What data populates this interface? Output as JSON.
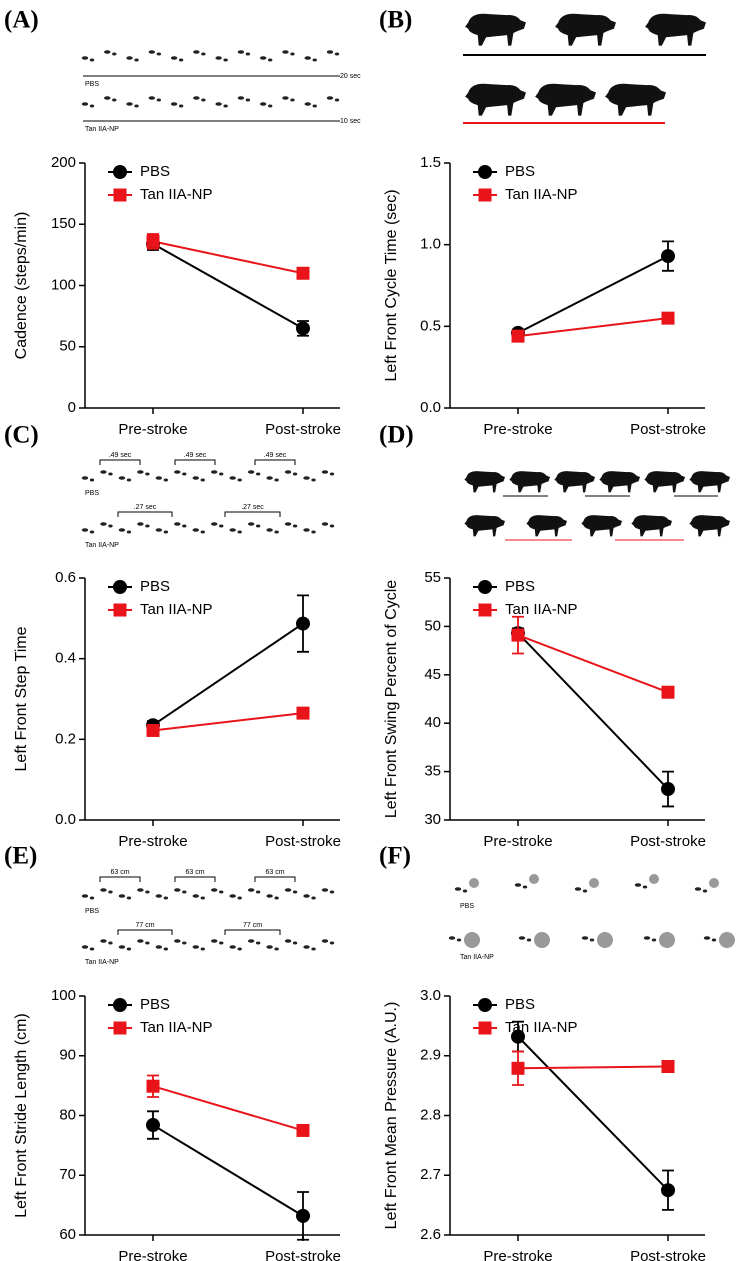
{
  "chart_data": [
    {
      "type": "line",
      "panel_label": "(A)",
      "y_label": "Cadence  (steps/min)",
      "annotations": [
        "PBS",
        "20 sec",
        "Tan IIA-NP",
        "10 sec"
      ],
      "categories": [
        "Pre-stroke",
        "Post-stroke"
      ],
      "ylim": [
        0,
        200
      ],
      "yticks": [
        0,
        50,
        100,
        150,
        200
      ],
      "series": [
        {
          "name": "PBS",
          "color": "#000000",
          "marker": "circle",
          "values": [
            134,
            65
          ],
          "errors": [
            5,
            6
          ]
        },
        {
          "name": "Tan IIA-NP",
          "color": "#e8141a",
          "marker": "square",
          "values": [
            136,
            110
          ],
          "errors": [
            6,
            2
          ]
        }
      ]
    },
    {
      "type": "line",
      "panel_label": "(B)",
      "y_label": "Left  Front Cycle Time (sec)",
      "annotations": [],
      "categories": [
        "Pre-stroke",
        "Post-stroke"
      ],
      "ylim": [
        0,
        1.5
      ],
      "yticks": [
        {
          "value": 0,
          "label": "0.0"
        },
        0.5,
        {
          "value": 1,
          "label": "1.0"
        },
        1.5
      ],
      "series": [
        {
          "name": "PBS",
          "color": "#000000",
          "marker": "circle",
          "values": [
            0.46,
            0.93
          ],
          "errors": [
            0.02,
            0.09
          ]
        },
        {
          "name": "Tan IIA-NP",
          "color": "#e8141a",
          "marker": "square",
          "values": [
            0.44,
            0.55
          ],
          "errors": [
            0.02,
            0.02
          ]
        }
      ]
    },
    {
      "type": "line",
      "panel_label": "(C)",
      "y_label": "Left  Front  Step  Time",
      "annotations": [
        ".49 sec",
        ".49 sec",
        ".49 sec",
        "PBS",
        ".27 sec",
        ".27 sec",
        "Tan IIA-NP"
      ],
      "categories": [
        "Pre-stroke",
        "Post-stroke"
      ],
      "ylim": [
        0,
        0.6
      ],
      "yticks": [
        {
          "value": 0,
          "label": "0.0"
        },
        0.2,
        0.4,
        0.6
      ],
      "series": [
        {
          "name": "PBS",
          "color": "#000000",
          "marker": "circle",
          "values": [
            0.235,
            0.487
          ],
          "errors": [
            0.01,
            0.07
          ]
        },
        {
          "name": "Tan IIA-NP",
          "color": "#e8141a",
          "marker": "square",
          "values": [
            0.222,
            0.265
          ],
          "errors": [
            0.01,
            0.01
          ]
        }
      ]
    },
    {
      "type": "line",
      "panel_label": "(D)",
      "y_label": "Left  Front  Swing Percent of  Cycle",
      "annotations": [],
      "categories": [
        "Pre-stroke",
        "Post-stroke"
      ],
      "ylim": [
        30,
        55
      ],
      "yticks": [
        30,
        35,
        40,
        45,
        50,
        55
      ],
      "series": [
        {
          "name": "PBS",
          "color": "#000000",
          "marker": "circle",
          "values": [
            49.3,
            33.2
          ],
          "errors": [
            0.5,
            1.8
          ]
        },
        {
          "name": "Tan IIA-NP",
          "color": "#e8141a",
          "marker": "square",
          "values": [
            49.1,
            43.2
          ],
          "errors": [
            1.9,
            0.3
          ]
        }
      ]
    },
    {
      "type": "line",
      "panel_label": "(E)",
      "y_label": "Left  Front Stride Length  (cm)",
      "annotations": [
        "63 cm",
        "63 cm",
        "63 cm",
        "PBS",
        "77 cm",
        "77 cm",
        "Tan IIA-NP"
      ],
      "categories": [
        "Pre-stroke",
        "Post-stroke"
      ],
      "ylim": [
        60,
        100
      ],
      "yticks": [
        60,
        70,
        80,
        90,
        100
      ],
      "series": [
        {
          "name": "PBS",
          "color": "#000000",
          "marker": "circle",
          "values": [
            78.4,
            63.2
          ],
          "errors": [
            2.3,
            4
          ]
        },
        {
          "name": "Tan IIA-NP",
          "color": "#e8141a",
          "marker": "square",
          "values": [
            84.9,
            77.5
          ],
          "errors": [
            1.8,
            0.3
          ]
        }
      ]
    },
    {
      "type": "line",
      "panel_label": "(F)",
      "y_label": "Left  Front Mean Pressure (A.U.)",
      "annotations": [
        "PBS",
        "Tan IIA-NP"
      ],
      "categories": [
        "Pre-stroke",
        "Post-stroke"
      ],
      "ylim": [
        2.6,
        3.0
      ],
      "yticks": [
        2.6,
        2.7,
        2.8,
        2.9,
        {
          "value": 3,
          "label": "3.0"
        }
      ],
      "series": [
        {
          "name": "PBS",
          "color": "#000000",
          "marker": "circle",
          "values": [
            2.932,
            2.675
          ],
          "errors": [
            0.025,
            0.033
          ]
        },
        {
          "name": "Tan IIA-NP",
          "color": "#e8141a",
          "marker": "square",
          "values": [
            2.879,
            2.882
          ],
          "errors": [
            0.028,
            0.003
          ]
        }
      ]
    }
  ]
}
